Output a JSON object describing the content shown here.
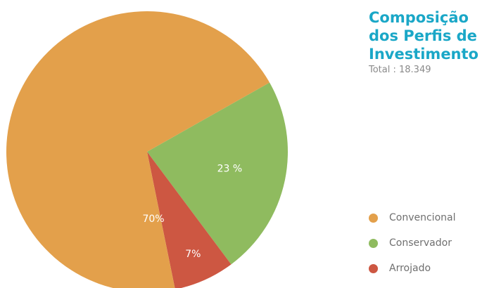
{
  "chart_data": {
    "type": "pie",
    "title_lines": [
      "Composição",
      "dos Perfis de",
      "Investimento"
    ],
    "subtitle": "Total : 18.349",
    "legend_placement": "right",
    "slices": [
      {
        "name": "Convencional",
        "value": 70,
        "label": "70%",
        "color": "#e3a04b"
      },
      {
        "name": "Conservador",
        "value": 23,
        "label": "23 %",
        "color": "#8fbb5f"
      },
      {
        "name": "Arrojado",
        "value": 7,
        "label": "7%",
        "color": "#cd5742"
      }
    ]
  }
}
